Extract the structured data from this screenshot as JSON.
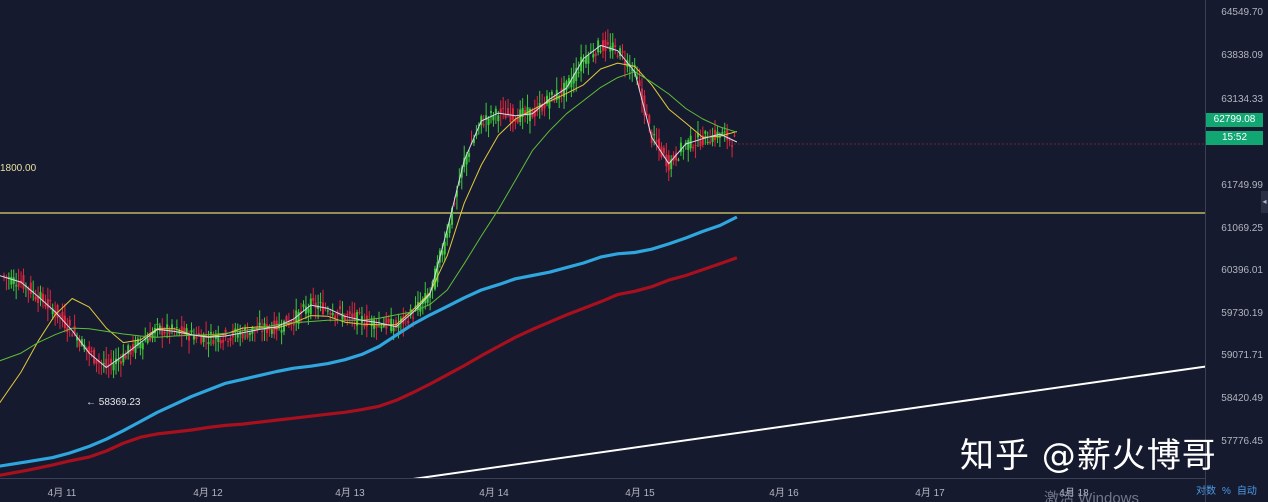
{
  "chart_data": {
    "type": "line",
    "instrument_kind": "candlestick",
    "xlabel": "",
    "ylabel": "",
    "ylim": [
      57720,
      64990
    ],
    "x_ticks": [
      "4月 11",
      "4月 12",
      "4月 13",
      "4月 14",
      "4月 15",
      "4月 16",
      "4月 17",
      "4月 18"
    ],
    "y_ticks": [
      "64549.70",
      "63838.09",
      "63134.33",
      "61749.99",
      "61069.25",
      "60396.01",
      "59730.19",
      "59071.71",
      "58420.49",
      "57776.45"
    ],
    "last_price": "62799.08",
    "countdown": "15:52",
    "horizontal_line_value": 61749.99,
    "horizontal_line_label": "1800.00",
    "low_marker_label": "← 58369.23",
    "series": [
      {
        "kind": "ma",
        "color": "#2fa6de",
        "points": [
          [
            -2,
            57900
          ],
          [
            10,
            57970
          ],
          [
            20,
            58030
          ],
          [
            27,
            58100
          ],
          [
            35,
            58200
          ],
          [
            42,
            58310
          ],
          [
            49,
            58440
          ],
          [
            56,
            58580
          ],
          [
            63,
            58720
          ],
          [
            70,
            58840
          ],
          [
            77,
            58960
          ],
          [
            84,
            59060
          ],
          [
            91,
            59160
          ],
          [
            98,
            59220
          ],
          [
            105,
            59280
          ],
          [
            112,
            59340
          ],
          [
            119,
            59390
          ],
          [
            126,
            59420
          ],
          [
            133,
            59460
          ],
          [
            140,
            59520
          ],
          [
            147,
            59600
          ],
          [
            154,
            59720
          ],
          [
            161,
            59890
          ],
          [
            168,
            60060
          ],
          [
            175,
            60200
          ],
          [
            182,
            60330
          ],
          [
            189,
            60460
          ],
          [
            196,
            60580
          ],
          [
            203,
            60660
          ],
          [
            210,
            60750
          ],
          [
            217,
            60800
          ],
          [
            224,
            60850
          ],
          [
            231,
            60920
          ],
          [
            238,
            60990
          ],
          [
            245,
            61080
          ],
          [
            252,
            61130
          ],
          [
            259,
            61150
          ],
          [
            266,
            61200
          ],
          [
            273,
            61280
          ],
          [
            280,
            61370
          ],
          [
            287,
            61470
          ],
          [
            294,
            61560
          ],
          [
            301,
            61690
          ]
        ]
      },
      {
        "kind": "ma",
        "color": "#a8101e",
        "points": [
          [
            -2,
            57760
          ],
          [
            10,
            57840
          ],
          [
            20,
            57920
          ],
          [
            27,
            57980
          ],
          [
            35,
            58040
          ],
          [
            42,
            58130
          ],
          [
            49,
            58250
          ],
          [
            56,
            58340
          ],
          [
            63,
            58390
          ],
          [
            70,
            58420
          ],
          [
            77,
            58450
          ],
          [
            84,
            58490
          ],
          [
            91,
            58520
          ],
          [
            98,
            58540
          ],
          [
            105,
            58570
          ],
          [
            112,
            58600
          ],
          [
            119,
            58630
          ],
          [
            126,
            58660
          ],
          [
            133,
            58690
          ],
          [
            140,
            58720
          ],
          [
            147,
            58760
          ],
          [
            154,
            58810
          ],
          [
            161,
            58900
          ],
          [
            168,
            59020
          ],
          [
            175,
            59150
          ],
          [
            182,
            59290
          ],
          [
            189,
            59430
          ],
          [
            196,
            59580
          ],
          [
            203,
            59720
          ],
          [
            210,
            59860
          ],
          [
            217,
            59980
          ],
          [
            224,
            60090
          ],
          [
            231,
            60200
          ],
          [
            238,
            60300
          ],
          [
            245,
            60400
          ],
          [
            252,
            60510
          ],
          [
            259,
            60560
          ],
          [
            266,
            60630
          ],
          [
            273,
            60730
          ],
          [
            280,
            60800
          ],
          [
            287,
            60890
          ],
          [
            294,
            60980
          ],
          [
            301,
            61070
          ]
        ]
      },
      {
        "kind": "trendline",
        "color": "#ffffff",
        "points": [
          [
            150,
            57610
          ],
          [
            500,
            59450
          ]
        ]
      },
      {
        "kind": "ma",
        "color": "#e2c83e",
        "points": [
          [
            -2,
            58850
          ],
          [
            7,
            59330
          ],
          [
            14,
            59800
          ],
          [
            21,
            60200
          ],
          [
            28,
            60450
          ],
          [
            35,
            60320
          ],
          [
            42,
            60000
          ],
          [
            49,
            59780
          ],
          [
            56,
            59820
          ],
          [
            63,
            59990
          ],
          [
            70,
            59990
          ],
          [
            77,
            59900
          ],
          [
            84,
            59870
          ],
          [
            91,
            59910
          ],
          [
            98,
            60000
          ],
          [
            105,
            60020
          ],
          [
            112,
            60000
          ],
          [
            119,
            60080
          ],
          [
            126,
            60190
          ],
          [
            133,
            60180
          ],
          [
            140,
            60090
          ],
          [
            147,
            60060
          ],
          [
            154,
            60050
          ],
          [
            161,
            60050
          ],
          [
            168,
            60280
          ],
          [
            175,
            60540
          ],
          [
            182,
            61100
          ],
          [
            189,
            61900
          ],
          [
            196,
            62480
          ],
          [
            203,
            62930
          ],
          [
            210,
            63180
          ],
          [
            217,
            63320
          ],
          [
            224,
            63450
          ],
          [
            231,
            63570
          ],
          [
            238,
            63700
          ],
          [
            245,
            63940
          ],
          [
            252,
            64030
          ],
          [
            259,
            63980
          ],
          [
            266,
            63700
          ],
          [
            273,
            63330
          ],
          [
            280,
            63120
          ],
          [
            287,
            62900
          ],
          [
            294,
            62920
          ],
          [
            301,
            62990
          ]
        ]
      },
      {
        "kind": "ma",
        "color": "#5fbd3a",
        "points": [
          [
            -2,
            59500
          ],
          [
            7,
            59620
          ],
          [
            14,
            59780
          ],
          [
            21,
            59900
          ],
          [
            28,
            60000
          ],
          [
            35,
            59990
          ],
          [
            42,
            59950
          ],
          [
            49,
            59910
          ],
          [
            56,
            59880
          ],
          [
            63,
            59860
          ],
          [
            70,
            59880
          ],
          [
            77,
            59890
          ],
          [
            84,
            59900
          ],
          [
            91,
            59920
          ],
          [
            98,
            59960
          ],
          [
            105,
            60000
          ],
          [
            112,
            60050
          ],
          [
            119,
            60080
          ],
          [
            126,
            60100
          ],
          [
            133,
            60120
          ],
          [
            140,
            60120
          ],
          [
            147,
            60120
          ],
          [
            154,
            60150
          ],
          [
            161,
            60200
          ],
          [
            168,
            60250
          ],
          [
            175,
            60360
          ],
          [
            182,
            60580
          ],
          [
            189,
            60980
          ],
          [
            196,
            61400
          ],
          [
            203,
            61800
          ],
          [
            210,
            62250
          ],
          [
            217,
            62700
          ],
          [
            224,
            63000
          ],
          [
            231,
            63260
          ],
          [
            238,
            63460
          ],
          [
            245,
            63660
          ],
          [
            252,
            63810
          ],
          [
            259,
            63900
          ],
          [
            266,
            63740
          ],
          [
            273,
            63560
          ],
          [
            280,
            63340
          ],
          [
            287,
            63180
          ],
          [
            294,
            63060
          ],
          [
            301,
            62980
          ]
        ]
      },
      {
        "kind": "ma",
        "color": "#d6dcee",
        "points": [
          [
            -2,
            60800
          ],
          [
            7,
            60700
          ],
          [
            14,
            60480
          ],
          [
            21,
            60250
          ],
          [
            28,
            59960
          ],
          [
            35,
            59620
          ],
          [
            42,
            59400
          ],
          [
            49,
            59580
          ],
          [
            56,
            59780
          ],
          [
            63,
            59980
          ],
          [
            70,
            59950
          ],
          [
            77,
            59900
          ],
          [
            84,
            59860
          ],
          [
            91,
            59880
          ],
          [
            98,
            59930
          ],
          [
            105,
            59980
          ],
          [
            112,
            60020
          ],
          [
            119,
            60140
          ],
          [
            126,
            60350
          ],
          [
            133,
            60300
          ],
          [
            140,
            60180
          ],
          [
            147,
            60120
          ],
          [
            154,
            60080
          ],
          [
            161,
            60020
          ],
          [
            168,
            60240
          ],
          [
            175,
            60520
          ],
          [
            182,
            61500
          ],
          [
            189,
            62550
          ],
          [
            196,
            63150
          ],
          [
            203,
            63270
          ],
          [
            210,
            63230
          ],
          [
            217,
            63260
          ],
          [
            224,
            63480
          ],
          [
            231,
            63650
          ],
          [
            238,
            64100
          ],
          [
            245,
            64300
          ],
          [
            252,
            64220
          ],
          [
            259,
            63900
          ],
          [
            266,
            62900
          ],
          [
            273,
            62500
          ],
          [
            280,
            62800
          ],
          [
            287,
            62880
          ],
          [
            294,
            62950
          ],
          [
            301,
            62830
          ]
        ]
      }
    ]
  },
  "overlay": {
    "watermark": "知乎 @薪火博哥",
    "os_notice": "激活 Windows",
    "axis_options": [
      "对数",
      "%",
      "自动"
    ]
  },
  "colors": {
    "background": "#151a2e",
    "up": "#3ec83a",
    "down": "#e0263f",
    "hline": "#e2d46a"
  }
}
